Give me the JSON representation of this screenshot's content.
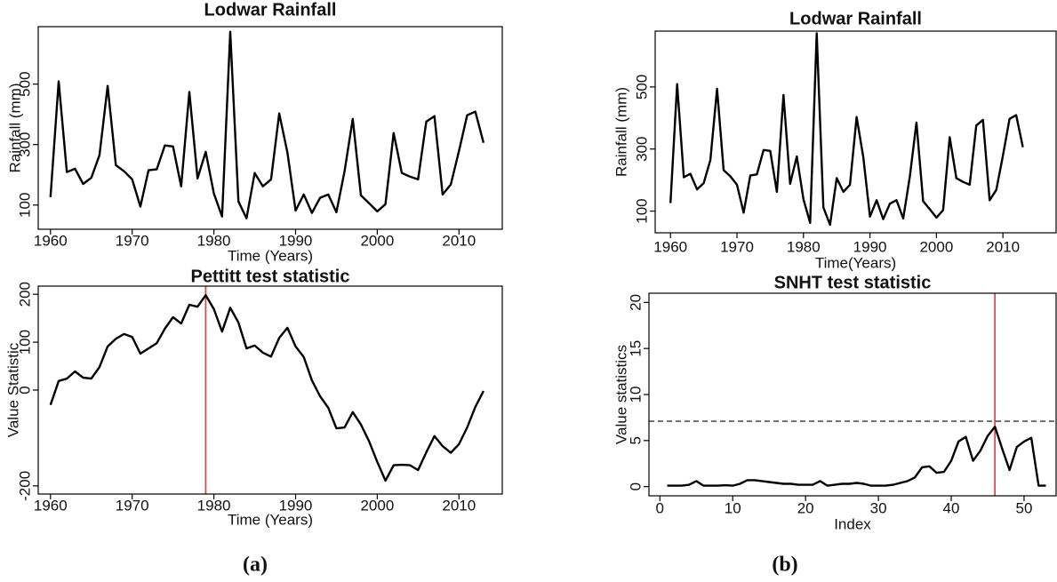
{
  "captions": [
    "(a)",
    "(b)"
  ],
  "chart_data": [
    {
      "type": "line",
      "title": "Lodwar Rainfall",
      "xlabel": "Time (Years)",
      "ylabel": "Rainfall (mm)",
      "x": [
        1960,
        1961,
        1962,
        1963,
        1964,
        1965,
        1966,
        1967,
        1968,
        1969,
        1970,
        1971,
        1972,
        1973,
        1974,
        1975,
        1976,
        1977,
        1978,
        1979,
        1980,
        1981,
        1982,
        1983,
        1984,
        1985,
        1986,
        1987,
        1988,
        1989,
        1990,
        1991,
        1992,
        1993,
        1994,
        1995,
        1996,
        1997,
        1998,
        1999,
        2000,
        2001,
        2002,
        2003,
        2004,
        2005,
        2006,
        2007,
        2008,
        2009,
        2010,
        2011,
        2012,
        2013
      ],
      "values": [
        126,
        509,
        209,
        220,
        170,
        190,
        265,
        494,
        232,
        212,
        185,
        95,
        215,
        218,
        297,
        294,
        162,
        474,
        188,
        276,
        138,
        62,
        673,
        112,
        56,
        206,
        162,
        185,
        403,
        274,
        82,
        135,
        74,
        124,
        135,
        76,
        212,
        385,
        132,
        106,
        79,
        103,
        338,
        206,
        194,
        185,
        376,
        394,
        135,
        168,
        279,
        397,
        409,
        306
      ],
      "color": "#000000",
      "xlim": [
        1958.5,
        2015.3
      ],
      "ylim": [
        20,
        690
      ],
      "xticks": [
        1960,
        1970,
        1980,
        1990,
        2000,
        2010
      ],
      "yticks": [
        100,
        300,
        500
      ]
    },
    {
      "type": "line",
      "title": "Pettitt test statistic",
      "xlabel": "Time (Years)",
      "ylabel": "Value Statistic",
      "x": [
        1960,
        1961,
        1962,
        1963,
        1964,
        1965,
        1966,
        1967,
        1968,
        1969,
        1970,
        1971,
        1972,
        1973,
        1974,
        1975,
        1976,
        1977,
        1978,
        1979,
        1980,
        1981,
        1982,
        1983,
        1984,
        1985,
        1986,
        1987,
        1988,
        1989,
        1990,
        1991,
        1992,
        1993,
        1994,
        1995,
        1996,
        1997,
        1998,
        1999,
        2000,
        2001,
        2002,
        2003,
        2004,
        2005,
        2006,
        2007,
        2008,
        2009,
        2010,
        2011,
        2012,
        2013
      ],
      "values": [
        -31,
        19,
        24,
        39,
        26,
        24,
        48,
        91,
        107,
        117,
        111,
        76,
        87,
        98,
        128,
        152,
        139,
        178,
        174,
        198,
        169,
        122,
        172,
        141,
        87,
        93,
        78,
        70,
        109,
        130,
        91,
        69,
        20,
        -13,
        -37,
        -80,
        -78,
        -46,
        -72,
        -107,
        -150,
        -189,
        -157,
        -156,
        -157,
        -167,
        -130,
        -96,
        -117,
        -131,
        -113,
        -78,
        -35,
        -2
      ],
      "color": "#000000",
      "xlim": [
        1958.5,
        2015.3
      ],
      "ylim": [
        -217,
        217
      ],
      "xticks": [
        1960,
        1970,
        1980,
        1990,
        2000,
        2010
      ],
      "yticks": [
        -200,
        0,
        100,
        200
      ],
      "vline": {
        "x": 1979,
        "color": "#e0474c"
      }
    },
    {
      "type": "line",
      "title": "Lodwar Rainfall",
      "xlabel": "Time(Years)",
      "ylabel": "Rainfall (mm)",
      "x": [
        1960,
        1961,
        1962,
        1963,
        1964,
        1965,
        1966,
        1967,
        1968,
        1969,
        1970,
        1971,
        1972,
        1973,
        1974,
        1975,
        1976,
        1977,
        1978,
        1979,
        1980,
        1981,
        1982,
        1983,
        1984,
        1985,
        1986,
        1987,
        1988,
        1989,
        1990,
        1991,
        1992,
        1993,
        1994,
        1995,
        1996,
        1997,
        1998,
        1999,
        2000,
        2001,
        2002,
        2003,
        2004,
        2005,
        2006,
        2007,
        2008,
        2009,
        2010,
        2011,
        2012,
        2013
      ],
      "values": [
        126,
        509,
        209,
        220,
        170,
        190,
        265,
        494,
        232,
        212,
        185,
        95,
        215,
        218,
        297,
        294,
        162,
        474,
        188,
        276,
        138,
        62,
        673,
        112,
        56,
        206,
        162,
        185,
        403,
        274,
        82,
        135,
        74,
        124,
        135,
        76,
        212,
        385,
        132,
        106,
        79,
        103,
        338,
        206,
        194,
        185,
        376,
        394,
        135,
        168,
        279,
        397,
        409,
        306
      ],
      "color": "#000000",
      "xlim": [
        1957.7,
        2018
      ],
      "ylim": [
        30,
        680
      ],
      "xticks": [
        1960,
        1970,
        1980,
        1990,
        2000,
        2010
      ],
      "yticks": [
        100,
        300,
        500
      ]
    },
    {
      "type": "line",
      "title": "SNHT test statistic",
      "xlabel": "Index",
      "ylabel": "Value statistics",
      "x": [
        1,
        2,
        3,
        4,
        5,
        6,
        7,
        8,
        9,
        10,
        11,
        12,
        13,
        14,
        15,
        16,
        17,
        18,
        19,
        20,
        21,
        22,
        23,
        24,
        25,
        26,
        27,
        28,
        29,
        30,
        31,
        32,
        33,
        34,
        35,
        36,
        37,
        38,
        39,
        40,
        41,
        42,
        43,
        44,
        45,
        46,
        47,
        48,
        49,
        50,
        51,
        52,
        53
      ],
      "values": [
        0.1,
        0.1,
        0.1,
        0.2,
        0.6,
        0.1,
        0.1,
        0.1,
        0.15,
        0.1,
        0.3,
        0.7,
        0.7,
        0.6,
        0.5,
        0.4,
        0.3,
        0.3,
        0.2,
        0.2,
        0.2,
        0.6,
        0.1,
        0.2,
        0.3,
        0.3,
        0.4,
        0.3,
        0.1,
        0.1,
        0.1,
        0.2,
        0.4,
        0.6,
        1.0,
        2.1,
        2.2,
        1.5,
        1.6,
        2.8,
        4.9,
        5.4,
        2.8,
        3.9,
        5.5,
        6.5,
        4.1,
        1.8,
        4.3,
        4.9,
        5.3,
        0.1,
        0.1
      ],
      "color": "#000000",
      "xlim": [
        -1.5,
        54.4
      ],
      "ylim": [
        -1,
        21
      ],
      "xticks": [
        0,
        10,
        20,
        30,
        40,
        50
      ],
      "yticks": [
        0,
        5,
        10,
        15,
        20
      ],
      "vline": {
        "x": 46,
        "color": "#e0474c"
      },
      "hline": {
        "y": 7.1,
        "color": "#333333",
        "dashed": true
      }
    }
  ]
}
